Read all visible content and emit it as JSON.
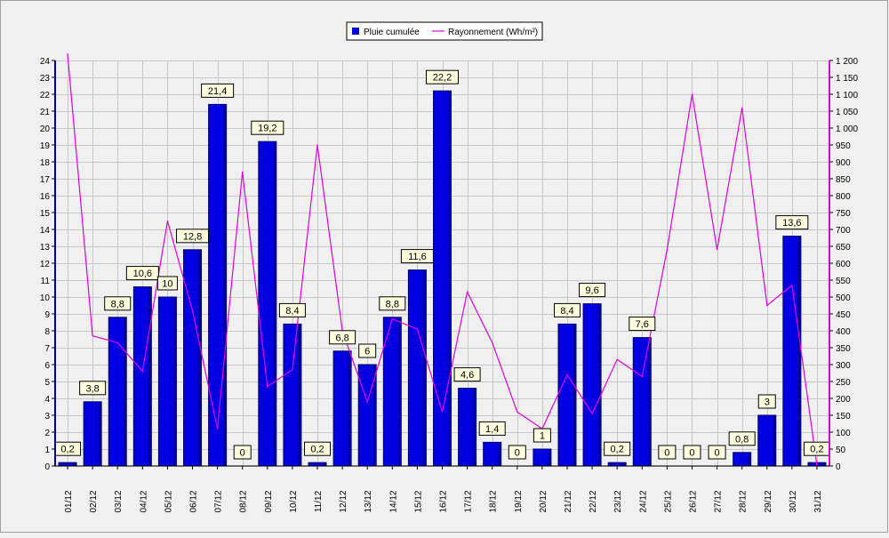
{
  "chart_data": {
    "type": "bar",
    "legend": {
      "placement": "top-center",
      "bar_label": "Pluie cumulée",
      "line_label": "Rayonnement (Wh/m²)"
    },
    "categories": [
      "01/12",
      "02/12",
      "03/12",
      "04/12",
      "05/12",
      "06/12",
      "07/12",
      "08/12",
      "09/12",
      "10/12",
      "11/12",
      "12/12",
      "13/12",
      "14/12",
      "15/12",
      "16/12",
      "17/12",
      "18/12",
      "19/12",
      "20/12",
      "21/12",
      "22/12",
      "23/12",
      "24/12",
      "25/12",
      "26/12",
      "27/12",
      "28/12",
      "29/12",
      "30/12",
      "31/12"
    ],
    "series": [
      {
        "name": "Pluie cumulée",
        "type": "bar",
        "axis": "left",
        "color": "#0000e0",
        "values": [
          0.2,
          3.8,
          8.8,
          10.6,
          10,
          12.8,
          21.4,
          0,
          19.2,
          8.4,
          0.2,
          6.8,
          6,
          8.8,
          11.6,
          22.2,
          4.6,
          1.4,
          0,
          1,
          8.4,
          9.6,
          0.2,
          7.6,
          0,
          0,
          0,
          0.8,
          3,
          13.6,
          0.2
        ],
        "labels": [
          "0,2",
          "3,8",
          "8,8",
          "10,6",
          "10",
          "12,8",
          "21,4",
          "0",
          "19,2",
          "8,4",
          "0,2",
          "6,8",
          "6",
          "8,8",
          "11,6",
          "22,2",
          "4,6",
          "1,4",
          "0",
          "1",
          "8,4",
          "9,6",
          "0,2",
          "7,6",
          "0",
          "0",
          "0",
          "0,8",
          "3",
          "13,6",
          "0,2"
        ]
      },
      {
        "name": "Rayonnement (Wh/m²)",
        "type": "line",
        "axis": "right",
        "color": "#e000e0",
        "values": [
          1220,
          385,
          365,
          280,
          725,
          460,
          110,
          870,
          235,
          285,
          950,
          400,
          190,
          435,
          405,
          160,
          515,
          365,
          160,
          110,
          270,
          155,
          315,
          265,
          640,
          1100,
          640,
          1060,
          475,
          535,
          0
        ]
      }
    ],
    "y_left": {
      "min": 0,
      "max": 24,
      "ticks": [
        "0",
        "1",
        "2",
        "3",
        "4",
        "5",
        "6",
        "7",
        "8",
        "9",
        "10",
        "11",
        "12",
        "13",
        "14",
        "15",
        "16",
        "17",
        "18",
        "19",
        "20",
        "21",
        "22",
        "23",
        "24"
      ]
    },
    "y_right": {
      "min": 0,
      "max": 1200,
      "ticks": [
        "0",
        "50",
        "100",
        "150",
        "200",
        "250",
        "300",
        "350",
        "400",
        "450",
        "500",
        "550",
        "600",
        "650",
        "700",
        "750",
        "800",
        "850",
        "900",
        "950",
        "1 000",
        "1 050",
        "1 100",
        "1 150",
        "1 200"
      ]
    },
    "grid": true
  }
}
